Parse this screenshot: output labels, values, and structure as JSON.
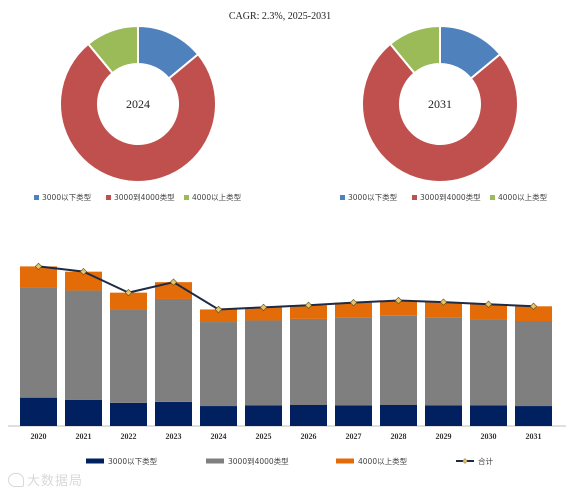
{
  "chart_data": [
    {
      "type": "donut",
      "title": "CAGR: 2.3%, 2025-2031",
      "center_label": "2024",
      "categories": [
        "3000以下类型",
        "3000到4000类型",
        "4000以上类型"
      ],
      "values": [
        14,
        75,
        11
      ],
      "colors": [
        "#4f81bd",
        "#c0504d",
        "#9bbb59"
      ],
      "legend": "bottom"
    },
    {
      "type": "donut",
      "center_label": "2031",
      "categories": [
        "3000以下类型",
        "3000到4000类型",
        "4000以上类型"
      ],
      "values": [
        14,
        75,
        11
      ],
      "colors": [
        "#4f81bd",
        "#c0504d",
        "#9bbb59"
      ],
      "legend": "bottom"
    },
    {
      "type": "bar",
      "stacked": true,
      "categories": [
        "2020",
        "2021",
        "2022",
        "2023",
        "2024",
        "2025",
        "2026",
        "2027",
        "2028",
        "2029",
        "2030",
        "2031"
      ],
      "series": [
        {
          "name": "3000以下类型",
          "color": "#002060",
          "values": [
            27,
            25,
            22,
            23,
            19,
            19.5,
            20,
            19.5,
            20,
            19.5,
            19.5,
            19
          ]
        },
        {
          "name": "3000到4000类型",
          "color": "#7f7f7f",
          "values": [
            105,
            104,
            89,
            98,
            80,
            81,
            82,
            84,
            85,
            84,
            82,
            81
          ]
        },
        {
          "name": "4000以上类型",
          "color": "#e36c09",
          "values": [
            20,
            18,
            16,
            16,
            12,
            12.5,
            13,
            14,
            14.5,
            14.5,
            14.5,
            14
          ]
        },
        {
          "name": "合计",
          "type": "line",
          "color": "#1f2a44",
          "marker_color": "#e3c36b",
          "values": [
            152,
            147,
            127,
            137,
            111,
            113,
            115,
            117.5,
            119.5,
            118,
            116,
            114
          ]
        }
      ],
      "ylim": [
        0,
        160
      ],
      "grid": false,
      "legend": "bottom"
    }
  ],
  "watermark": "大数据局"
}
